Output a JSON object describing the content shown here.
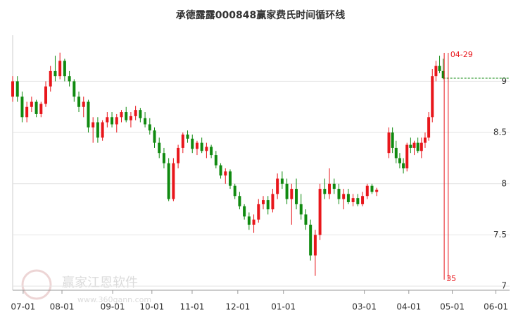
{
  "chart_data": {
    "type": "candlestick",
    "title": "承德露露000848赢家费氏时间循环线",
    "xlim": [
      0,
      247
    ],
    "xticks": [
      {
        "value": 5.2,
        "label": "07-01"
      },
      {
        "value": 24.5,
        "label": "08-01"
      },
      {
        "value": 49.7,
        "label": "09-01"
      },
      {
        "value": 69.2,
        "label": "10-01"
      },
      {
        "value": 89.2,
        "label": "11-01"
      },
      {
        "value": 111.9,
        "label": "12-01"
      },
      {
        "value": 134.6,
        "label": "01-01"
      },
      {
        "value": 174.8,
        "label": "03-01"
      },
      {
        "value": 196.9,
        "label": "04-01"
      },
      {
        "value": 218.5,
        "label": "05-01"
      },
      {
        "value": 240.2,
        "label": "06-01"
      }
    ],
    "ylim": [
      6.96,
      9.45
    ],
    "yticks": [
      7,
      7.5,
      8,
      8.5,
      9
    ],
    "grid": true,
    "up_color": "#e8161b",
    "down_color": "#108a10",
    "x": [
      0,
      2.35,
      4.7,
      7.05,
      9.4,
      11.75,
      14.1,
      16.45,
      18.8,
      21.15,
      23.5,
      25.85,
      28.2,
      30.55,
      32.9,
      35.25,
      37.6,
      39.95,
      42.3,
      44.65,
      47,
      49.35,
      51.7,
      54.05,
      56.4,
      58.75,
      61.1,
      63.45,
      65.8,
      68.15,
      70.5,
      72.85,
      75.2,
      77.55,
      79.9,
      82.25,
      84.6,
      86.95,
      89.3,
      91.65,
      94,
      96.35,
      98.7,
      101.05,
      103.4,
      105.75,
      108.1,
      110.45,
      112.8,
      115.15,
      117.5,
      119.85,
      122.2,
      124.55,
      126.9,
      129.25,
      131.6,
      133.95,
      136.3,
      138.65,
      141,
      143.35,
      145.7,
      148.05,
      150.4,
      152.75,
      155.1,
      157.45,
      159.8,
      162.15,
      164.5,
      166.85,
      169.2,
      171.55,
      173.9,
      176.25,
      178.6,
      180.95,
      187,
      188.8,
      190.6,
      192.4,
      194.2,
      196,
      197.8,
      199.6,
      201.4,
      203.2,
      205,
      206.8,
      208.6,
      210.4,
      212.2,
      214
    ],
    "open": [
      8.85,
      9.0,
      8.85,
      8.65,
      8.75,
      8.8,
      8.68,
      8.78,
      8.95,
      9.1,
      9.05,
      9.2,
      9.05,
      9.0,
      8.85,
      8.75,
      8.8,
      8.55,
      8.6,
      8.45,
      8.6,
      8.65,
      8.58,
      8.65,
      8.7,
      8.62,
      8.66,
      8.72,
      8.64,
      8.58,
      8.52,
      8.4,
      8.3,
      8.2,
      7.85,
      8.2,
      8.35,
      8.48,
      8.44,
      8.34,
      8.4,
      8.32,
      8.36,
      8.28,
      8.18,
      8.08,
      8.12,
      7.98,
      7.88,
      7.78,
      7.68,
      7.6,
      7.65,
      7.8,
      7.84,
      7.75,
      7.9,
      8.05,
      8.0,
      7.85,
      7.95,
      7.8,
      7.7,
      7.6,
      7.3,
      7.5,
      7.95,
      7.9,
      8.0,
      7.95,
      7.85,
      7.9,
      7.82,
      7.86,
      7.8,
      7.88,
      7.98,
      7.92,
      8.3,
      8.5,
      8.35,
      8.25,
      8.2,
      8.15,
      8.38,
      8.35,
      8.4,
      8.32,
      8.4,
      8.45,
      8.65,
      9.05,
      9.15,
      9.1
    ],
    "high": [
      9.05,
      9.05,
      8.9,
      8.8,
      8.85,
      8.82,
      8.8,
      9.0,
      9.15,
      9.25,
      9.28,
      9.22,
      9.1,
      9.02,
      8.9,
      8.85,
      8.82,
      8.65,
      8.65,
      8.62,
      8.7,
      8.7,
      8.68,
      8.72,
      8.75,
      8.7,
      8.76,
      8.74,
      8.7,
      8.64,
      8.55,
      8.45,
      8.35,
      8.25,
      8.25,
      8.38,
      8.5,
      8.52,
      8.48,
      8.42,
      8.45,
      8.4,
      8.38,
      8.32,
      8.2,
      8.15,
      8.14,
      8.0,
      7.92,
      7.8,
      7.72,
      7.7,
      7.85,
      7.88,
      7.88,
      7.95,
      8.1,
      8.12,
      8.05,
      8.0,
      8.05,
      7.9,
      7.75,
      7.65,
      7.55,
      8.0,
      8.05,
      8.15,
      8.05,
      8.0,
      7.95,
      7.95,
      7.9,
      7.9,
      7.92,
      8.0,
      8.0,
      7.96,
      8.55,
      8.55,
      8.42,
      8.3,
      8.25,
      8.4,
      8.45,
      8.42,
      8.45,
      8.45,
      8.5,
      8.7,
      9.12,
      9.2,
      9.25,
      9.22
    ],
    "low": [
      8.8,
      8.8,
      8.6,
      8.6,
      8.7,
      8.65,
      8.65,
      8.75,
      8.9,
      9.0,
      9.02,
      9.0,
      8.95,
      8.8,
      8.7,
      8.65,
      8.5,
      8.4,
      8.4,
      8.42,
      8.55,
      8.55,
      8.5,
      8.6,
      8.6,
      8.55,
      8.62,
      8.6,
      8.55,
      8.48,
      8.35,
      8.25,
      8.15,
      7.83,
      7.83,
      8.15,
      8.3,
      8.4,
      8.3,
      8.28,
      8.3,
      8.25,
      8.25,
      8.15,
      8.05,
      8.0,
      7.95,
      7.85,
      7.75,
      7.65,
      7.55,
      7.52,
      7.62,
      7.75,
      7.7,
      7.72,
      7.85,
      7.95,
      7.8,
      7.6,
      7.75,
      7.65,
      7.55,
      7.25,
      7.1,
      7.45,
      7.85,
      7.85,
      7.9,
      7.8,
      7.75,
      7.8,
      7.78,
      7.78,
      7.78,
      7.85,
      7.9,
      7.88,
      8.25,
      8.3,
      8.2,
      8.15,
      8.1,
      8.12,
      8.3,
      8.28,
      8.3,
      8.25,
      8.35,
      8.42,
      8.6,
      9.0,
      9.08,
      9.02
    ],
    "close": [
      9.0,
      8.85,
      8.65,
      8.75,
      8.8,
      8.68,
      8.78,
      8.95,
      9.1,
      9.05,
      9.2,
      9.05,
      9.0,
      8.85,
      8.75,
      8.8,
      8.55,
      8.6,
      8.45,
      8.6,
      8.65,
      8.58,
      8.65,
      8.7,
      8.62,
      8.66,
      8.72,
      8.64,
      8.58,
      8.52,
      8.4,
      8.3,
      8.2,
      7.85,
      8.2,
      8.35,
      8.48,
      8.44,
      8.34,
      8.4,
      8.32,
      8.36,
      8.28,
      8.18,
      8.08,
      8.12,
      7.98,
      7.88,
      7.78,
      7.68,
      7.6,
      7.65,
      7.8,
      7.84,
      7.75,
      7.9,
      8.05,
      8.0,
      7.85,
      7.95,
      7.8,
      7.7,
      7.6,
      7.3,
      7.5,
      7.95,
      7.9,
      8.0,
      7.95,
      7.85,
      7.9,
      7.82,
      7.86,
      7.8,
      7.88,
      7.98,
      7.92,
      7.94,
      8.5,
      8.35,
      8.25,
      8.2,
      8.15,
      8.38,
      8.35,
      8.4,
      8.32,
      8.4,
      8.45,
      8.65,
      9.05,
      9.15,
      9.1,
      9.03
    ],
    "cycle_color": "#e8161b",
    "cycle_lines": [
      {
        "x": 214.5,
        "label": "35"
      },
      {
        "x": 216.5,
        "label": "04-29"
      }
    ],
    "last_line_color": "#108a10",
    "watermark": {
      "text": "赢家江恩软件",
      "url": "www.360gann.com"
    }
  }
}
